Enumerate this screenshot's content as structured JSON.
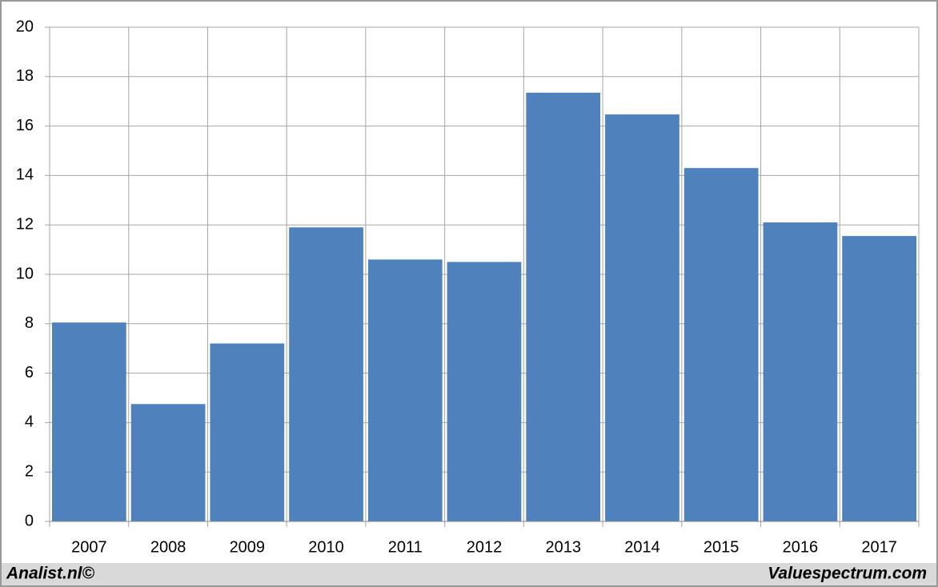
{
  "chart_data": {
    "type": "bar",
    "categories": [
      "2007",
      "2008",
      "2009",
      "2010",
      "2011",
      "2012",
      "2013",
      "2014",
      "2015",
      "2016",
      "2017"
    ],
    "values": [
      8.05,
      4.75,
      7.2,
      11.9,
      10.6,
      10.5,
      17.35,
      16.47,
      14.3,
      12.1,
      11.55
    ],
    "color": "#4f81bd",
    "ylim": [
      0,
      20
    ],
    "yticks": [
      0,
      2,
      4,
      6,
      8,
      10,
      12,
      14,
      16,
      18,
      20
    ],
    "grid": true
  },
  "footer": {
    "left": "Analist.nl©",
    "right": "Valuespectrum.com"
  }
}
